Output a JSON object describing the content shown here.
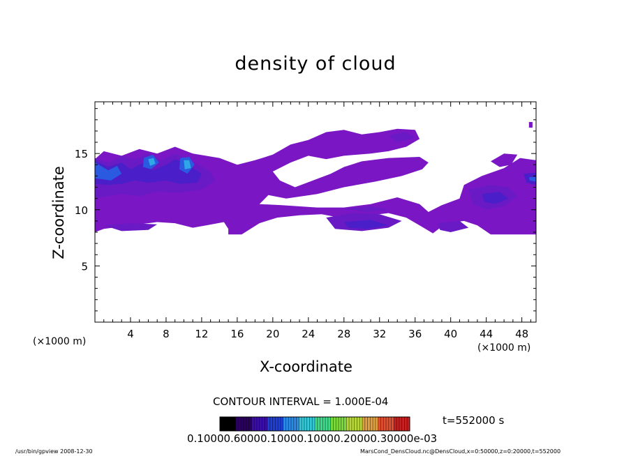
{
  "chart_data": {
    "type": "heatmap",
    "title": "density of cloud",
    "xlabel": "X-coordinate",
    "ylabel": "Z-coordinate",
    "x_unit_left": "(×1000 m)",
    "x_unit_right": "(×1000 m)",
    "xlim": [
      0,
      49.6
    ],
    "ylim": [
      0,
      19.6
    ],
    "x_ticks": [
      4,
      8,
      12,
      16,
      20,
      24,
      28,
      32,
      36,
      40,
      44,
      48
    ],
    "y_ticks": [
      5,
      10,
      15
    ],
    "contour_interval": "CONTOUR INTERVAL = 1.000E-04",
    "time_label": "t=552000 s",
    "colorbar_ticks_text": "0.10000.60000.10000.10000.20000.30000e-03",
    "colorbar_colors": [
      "#000000",
      "#2a0060",
      "#3b0ea8",
      "#1f3fd8",
      "#2a8ae8",
      "#33c8d8",
      "#3ddc8a",
      "#7adc3a",
      "#b8d83a",
      "#e0a040",
      "#e05030",
      "#c82020"
    ],
    "fill_color": "#7a16c4",
    "regions": [
      {
        "level": 1,
        "poly": [
          [
            0,
            14.5
          ],
          [
            1,
            15.2
          ],
          [
            3,
            14.8
          ],
          [
            5,
            15.4
          ],
          [
            7,
            15.0
          ],
          [
            9,
            15.6
          ],
          [
            11,
            15.0
          ],
          [
            14,
            14.6
          ],
          [
            16,
            14.0
          ],
          [
            18,
            14.4
          ],
          [
            20,
            14.9
          ],
          [
            22,
            15.8
          ],
          [
            24,
            16.2
          ],
          [
            26,
            16.9
          ],
          [
            28,
            17.1
          ],
          [
            30,
            16.7
          ],
          [
            32,
            16.9
          ],
          [
            34,
            17.2
          ],
          [
            36,
            17.1
          ],
          [
            36.5,
            16.3
          ],
          [
            35,
            15.6
          ],
          [
            33,
            15.2
          ],
          [
            31,
            15.0
          ],
          [
            28,
            14.8
          ],
          [
            26,
            14.5
          ],
          [
            24,
            14.8
          ],
          [
            22,
            14.2
          ],
          [
            20,
            13.4
          ],
          [
            20.8,
            12.6
          ],
          [
            22.5,
            12.0
          ],
          [
            24.5,
            12.6
          ],
          [
            26.5,
            13.2
          ],
          [
            28,
            13.8
          ],
          [
            30,
            14.3
          ],
          [
            33,
            14.6
          ],
          [
            36.5,
            14.7
          ],
          [
            37.5,
            14.2
          ],
          [
            36.8,
            13.6
          ],
          [
            34.5,
            13.0
          ],
          [
            31.5,
            12.5
          ],
          [
            28,
            12.0
          ],
          [
            25,
            11.4
          ],
          [
            21.5,
            11.0
          ],
          [
            19.5,
            11.3
          ],
          [
            18.5,
            10.5
          ],
          [
            21,
            10.4
          ],
          [
            25,
            10.2
          ],
          [
            28,
            10.2
          ],
          [
            31,
            10.5
          ],
          [
            34,
            11.1
          ],
          [
            36.5,
            10.5
          ],
          [
            37.5,
            9.8
          ],
          [
            39,
            10.4
          ],
          [
            41,
            11.0
          ],
          [
            41.5,
            12.2
          ],
          [
            43.5,
            13.0
          ],
          [
            46,
            13.7
          ],
          [
            47.8,
            14.6
          ],
          [
            49.6,
            14.4
          ],
          [
            49.6,
            7.8
          ],
          [
            44.5,
            7.8
          ],
          [
            43,
            8.6
          ],
          [
            41.5,
            9.0
          ],
          [
            39.5,
            8.8
          ],
          [
            38,
            7.9
          ],
          [
            36.5,
            8.6
          ],
          [
            35,
            9.3
          ],
          [
            33,
            9.7
          ],
          [
            31,
            9.5
          ],
          [
            29,
            9.0
          ],
          [
            27.5,
            9.3
          ],
          [
            25.5,
            9.6
          ],
          [
            23,
            9.5
          ],
          [
            20.5,
            9.3
          ],
          [
            18.5,
            8.8
          ],
          [
            16.5,
            7.8
          ],
          [
            15,
            7.8
          ],
          [
            15,
            8.3
          ],
          [
            14.5,
            8.9
          ],
          [
            12.5,
            8.6
          ],
          [
            11,
            8.4
          ],
          [
            9,
            8.8
          ],
          [
            7,
            8.9
          ],
          [
            5,
            8.7
          ],
          [
            3,
            8.5
          ],
          [
            1,
            8.3
          ],
          [
            0,
            8.0
          ]
        ]
      },
      {
        "level": 1,
        "poly": [
          [
            44.5,
            14.3
          ],
          [
            46,
            15.0
          ],
          [
            47.5,
            14.9
          ],
          [
            46.8,
            14.0
          ],
          [
            45.5,
            13.8
          ]
        ]
      },
      {
        "level": 1,
        "poly": [
          [
            48.8,
            17.8
          ],
          [
            49.2,
            17.8
          ],
          [
            49.2,
            17.3
          ],
          [
            48.8,
            17.3
          ]
        ]
      },
      {
        "level": 2,
        "poly": [
          [
            0,
            14.6
          ],
          [
            1.5,
            14.2
          ],
          [
            3,
            14.8
          ],
          [
            4.5,
            14.5
          ],
          [
            6,
            15.0
          ],
          [
            7.5,
            14.4
          ],
          [
            9,
            15.0
          ],
          [
            11,
            14.3
          ],
          [
            13,
            13.4
          ],
          [
            13.5,
            12.6
          ],
          [
            12,
            11.8
          ],
          [
            9.5,
            11.5
          ],
          [
            7,
            11.6
          ],
          [
            5,
            11.2
          ],
          [
            3,
            11.4
          ],
          [
            0,
            11.0
          ]
        ]
      },
      {
        "level": 3,
        "poly": [
          [
            0,
            14.4
          ],
          [
            1.5,
            13.8
          ],
          [
            3,
            14.2
          ],
          [
            4,
            13.6
          ],
          [
            5.5,
            14.2
          ],
          [
            6.5,
            13.5
          ],
          [
            8,
            14.0
          ],
          [
            9,
            14.5
          ],
          [
            10.5,
            14.0
          ],
          [
            12,
            13.2
          ],
          [
            11.5,
            12.4
          ],
          [
            9.5,
            12.3
          ],
          [
            8,
            12.6
          ],
          [
            6,
            12.4
          ],
          [
            4.5,
            12.6
          ],
          [
            3,
            12.3
          ],
          [
            1.5,
            12.2
          ],
          [
            0,
            12.3
          ]
        ]
      },
      {
        "level": 4,
        "poly": [
          [
            0,
            14.2
          ],
          [
            1.5,
            13.5
          ],
          [
            2.5,
            13.9
          ],
          [
            3,
            13.2
          ],
          [
            1.8,
            12.6
          ],
          [
            0,
            12.8
          ]
        ]
      },
      {
        "level": 4,
        "poly": [
          [
            5.5,
            14.6
          ],
          [
            6.5,
            14.9
          ],
          [
            7.2,
            14.2
          ],
          [
            6.3,
            13.6
          ],
          [
            5.4,
            13.8
          ]
        ]
      },
      {
        "level": 4,
        "poly": [
          [
            9.6,
            14.6
          ],
          [
            10.6,
            14.7
          ],
          [
            11.2,
            14.0
          ],
          [
            10.4,
            13.2
          ],
          [
            9.5,
            13.6
          ]
        ]
      },
      {
        "level": 5,
        "poly": [
          [
            6.0,
            14.5
          ],
          [
            6.6,
            14.6
          ],
          [
            6.8,
            14.1
          ],
          [
            6.2,
            13.9
          ]
        ]
      },
      {
        "level": 5,
        "poly": [
          [
            10.0,
            14.4
          ],
          [
            10.6,
            14.4
          ],
          [
            10.8,
            13.7
          ],
          [
            10.1,
            13.6
          ]
        ]
      },
      {
        "level": 2,
        "poly": [
          [
            42,
            11.8
          ],
          [
            44.5,
            12.2
          ],
          [
            46.5,
            12.0
          ],
          [
            47.5,
            11.2
          ],
          [
            46,
            10.3
          ],
          [
            44,
            10.0
          ],
          [
            42.5,
            10.5
          ]
        ]
      },
      {
        "level": 3,
        "poly": [
          [
            43.5,
            11.4
          ],
          [
            45.5,
            11.6
          ],
          [
            46.5,
            11.0
          ],
          [
            45,
            10.5
          ],
          [
            43.8,
            10.7
          ]
        ]
      },
      {
        "level": 3,
        "poly": [
          [
            48.2,
            13.2
          ],
          [
            49.6,
            13.3
          ],
          [
            49.6,
            12.2
          ],
          [
            48.5,
            12.4
          ]
        ]
      },
      {
        "level": 4,
        "poly": [
          [
            48.8,
            12.9
          ],
          [
            49.6,
            12.9
          ],
          [
            49.6,
            12.5
          ],
          [
            48.9,
            12.6
          ]
        ]
      },
      {
        "level": 2,
        "poly": [
          [
            26,
            9.3
          ],
          [
            29,
            9.7
          ],
          [
            32,
            9.6
          ],
          [
            34.5,
            9.0
          ],
          [
            33,
            8.4
          ],
          [
            30,
            8.1
          ],
          [
            27,
            8.3
          ]
        ]
      },
      {
        "level": 3,
        "poly": [
          [
            28,
            8.9
          ],
          [
            31,
            9.1
          ],
          [
            33,
            8.6
          ],
          [
            30.5,
            8.3
          ],
          [
            28.5,
            8.4
          ]
        ]
      },
      {
        "level": 2,
        "poly": [
          [
            1,
            8.6
          ],
          [
            4,
            8.8
          ],
          [
            7,
            8.7
          ],
          [
            6,
            8.2
          ],
          [
            3,
            8.1
          ]
        ]
      },
      {
        "level": 2,
        "poly": [
          [
            38.5,
            8.8
          ],
          [
            41,
            9.0
          ],
          [
            42,
            8.4
          ],
          [
            40,
            8.0
          ],
          [
            38.8,
            8.2
          ]
        ]
      },
      {
        "level": 2,
        "poly": [
          [
            28,
            10.1
          ],
          [
            31,
            10.3
          ],
          [
            33,
            10.0
          ],
          [
            30.5,
            9.8
          ]
        ]
      },
      {
        "level": 2,
        "poly": [
          [
            33,
            16.6
          ],
          [
            35,
            16.9
          ],
          [
            36,
            16.4
          ],
          [
            34,
            16.0
          ]
        ]
      }
    ],
    "level_colors": [
      "#7a16c4",
      "#6a1ac4",
      "#4a1ec8",
      "#2a5ae0",
      "#30a8e8",
      "#44d8d8"
    ]
  },
  "footer": {
    "left": "/usr/bin/gpview   2008-12-30",
    "right": "MarsCond_DensCloud.nc@DensCloud,x=0:50000,z=0:20000,t=552000"
  }
}
